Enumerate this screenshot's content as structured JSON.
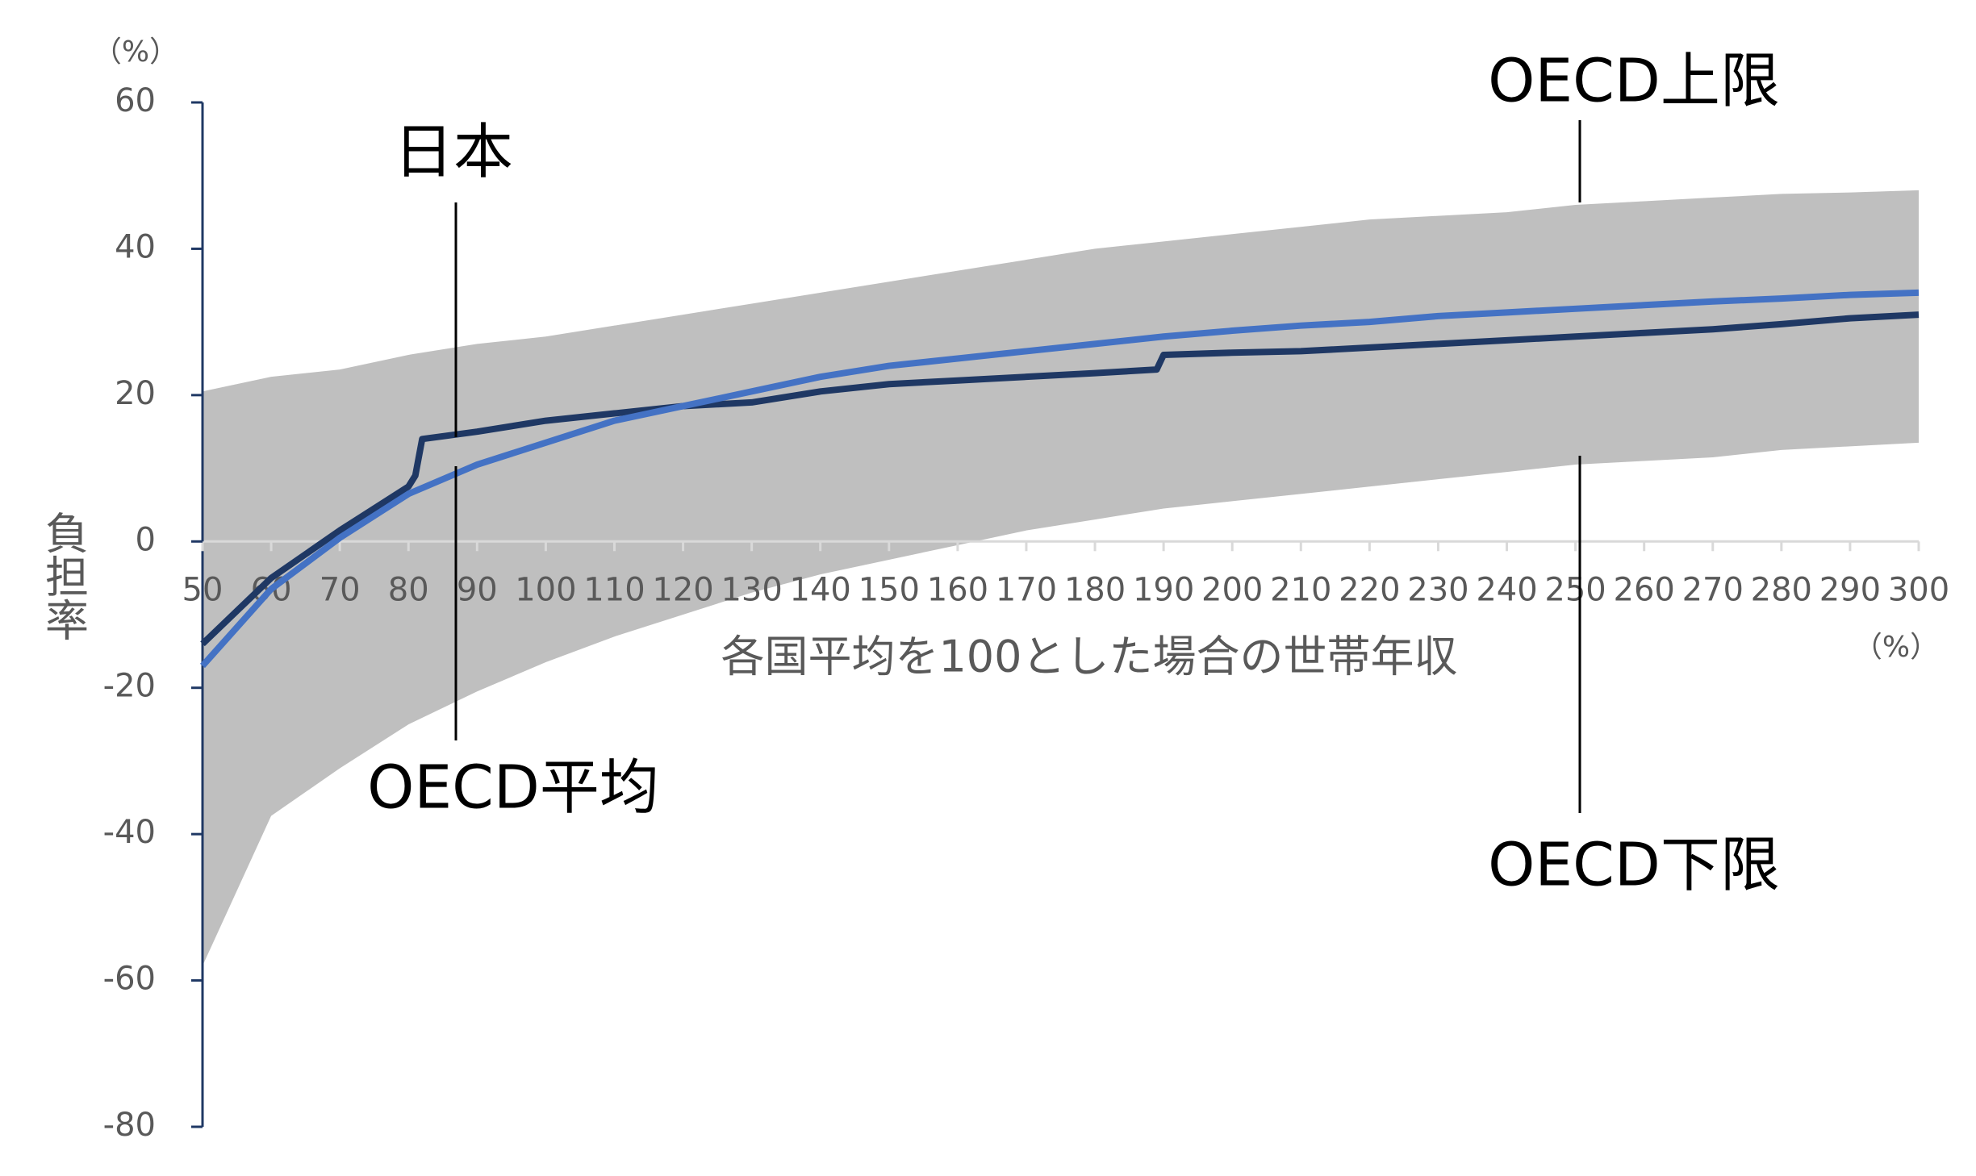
{
  "chart_data": {
    "type": "line",
    "x_label": "各国平均を100とした場合の世帯年収",
    "x_unit": "（%）",
    "y_label": "負担率",
    "y_unit": "（%）",
    "x": [
      50,
      60,
      70,
      80,
      90,
      100,
      110,
      120,
      130,
      140,
      150,
      160,
      170,
      180,
      190,
      200,
      210,
      220,
      230,
      240,
      250,
      260,
      270,
      280,
      290,
      300
    ],
    "band": {
      "color": "#bfbfbf",
      "upper": {
        "name": "OECD上限",
        "values": [
          20.5,
          22.5,
          23.5,
          25.5,
          27,
          28,
          29.5,
          31,
          32.5,
          34,
          35.5,
          37,
          38.5,
          40,
          41,
          42,
          43,
          44,
          44.5,
          45,
          46,
          46.5,
          47,
          47.5,
          47.7,
          48
        ]
      },
      "lower": {
        "name": "OECD下限",
        "values": [
          -58,
          -37.5,
          -31,
          -25,
          -20.5,
          -16.5,
          -13,
          -10,
          -7,
          -4.5,
          -2.5,
          -0.5,
          1.5,
          3,
          4.5,
          5.5,
          6.5,
          7.5,
          8.5,
          9.5,
          10.5,
          11,
          11.5,
          12.5,
          13,
          13.5
        ]
      }
    },
    "series": [
      {
        "name": "日本",
        "color": "#1f3864",
        "x": [
          50,
          60,
          70,
          80,
          81,
          82,
          90,
          100,
          110,
          120,
          130,
          140,
          150,
          160,
          170,
          180,
          189,
          190,
          200,
          210,
          220,
          230,
          240,
          250,
          260,
          270,
          280,
          290,
          300
        ],
        "values": [
          -14,
          -5,
          1.5,
          7.5,
          9,
          14,
          15,
          16.5,
          17.5,
          18.5,
          19,
          20.5,
          21.5,
          22,
          22.5,
          23,
          23.5,
          25.5,
          25.8,
          26,
          26.5,
          27,
          27.5,
          28,
          28.5,
          29,
          29.7,
          30.5,
          31
        ]
      },
      {
        "name": "OECD平均",
        "color": "#4472c4",
        "x": [
          50,
          60,
          70,
          80,
          90,
          100,
          110,
          120,
          130,
          140,
          150,
          160,
          170,
          180,
          190,
          200,
          210,
          220,
          230,
          240,
          250,
          260,
          270,
          280,
          290,
          300
        ],
        "values": [
          -17,
          -6.5,
          0.5,
          6.5,
          10.5,
          13.5,
          16.5,
          18.5,
          20.5,
          22.5,
          24,
          25,
          26,
          27,
          28,
          28.8,
          29.5,
          30,
          30.8,
          31.3,
          31.8,
          32.3,
          32.8,
          33.2,
          33.7,
          34
        ]
      }
    ],
    "xlim": [
      50,
      300
    ],
    "xticks": [
      50,
      60,
      70,
      80,
      90,
      100,
      110,
      120,
      130,
      140,
      150,
      160,
      170,
      180,
      190,
      200,
      210,
      220,
      230,
      240,
      250,
      260,
      270,
      280,
      290,
      300
    ],
    "ylim": [
      -80,
      60
    ],
    "yticks": [
      -80,
      -60,
      -40,
      -20,
      0,
      20,
      40,
      60
    ]
  }
}
